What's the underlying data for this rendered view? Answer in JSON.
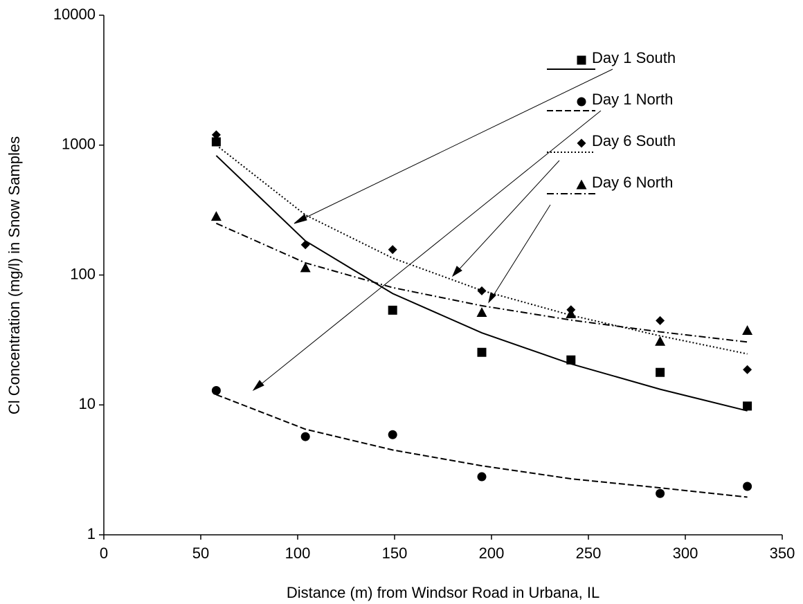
{
  "chart_data": {
    "type": "scatter",
    "x_label": "Distance (m) from Windsor Road in Urbana, IL",
    "y_label": "Cl Concentration (mg/l)  in Snow Samples",
    "x": [
      58,
      104,
      149,
      195,
      241,
      287,
      332
    ],
    "xlim": [
      0,
      350
    ],
    "xticks": [
      0,
      50,
      100,
      150,
      200,
      250,
      300,
      350
    ],
    "ylim": [
      1,
      10000
    ],
    "yticks": [
      1,
      10,
      100,
      1000,
      10000
    ],
    "y_log": true,
    "grid": false,
    "legend": "top-right",
    "series": [
      {
        "name": "Day 1 South",
        "color": "#000000",
        "marker": "square",
        "line_style": "solid",
        "values": [
          1060,
          null,
          53.6,
          25.4,
          22.2,
          17.8,
          9.8
        ],
        "trend_values": [
          830,
          183,
          72,
          35.9,
          20.7,
          13.2,
          9.0
        ]
      },
      {
        "name": "Day 1 North",
        "color": "#000000",
        "marker": "circle",
        "line_style": "dashed",
        "values": [
          12.9,
          5.7,
          5.9,
          2.8,
          null,
          2.08,
          2.36
        ],
        "trend_values": [
          12,
          6.5,
          4.5,
          3.4,
          2.7,
          2.3,
          1.95
        ]
      },
      {
        "name": "Day 6 South",
        "color": "#000000",
        "marker": "diamond",
        "line_style": "dotted",
        "values": [
          1200,
          171,
          157,
          75.5,
          54,
          44.6,
          18.7
        ],
        "trend_values": [
          1000,
          290,
          135,
          76,
          49,
          34,
          24.7
        ]
      },
      {
        "name": "Day 6 North",
        "color": "#000000",
        "marker": "triangle",
        "line_style": "dashdot",
        "values": [
          283,
          114,
          null,
          51.6,
          50.4,
          30.9,
          37.5
        ],
        "trend_values": [
          250,
          124,
          80,
          58,
          45,
          36.5,
          30.5
        ]
      }
    ]
  }
}
